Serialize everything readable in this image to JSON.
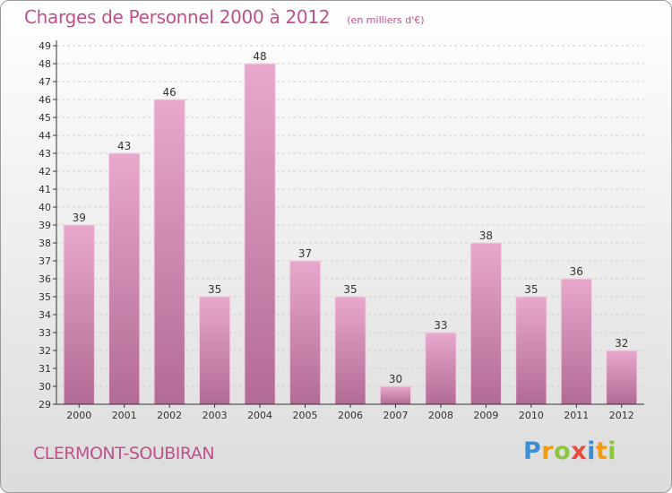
{
  "title": "Charges de Personnel 2000 à 2012",
  "subtitle": "(en milliers d'€)",
  "place": "CLERMONT-SOUBIRAN",
  "logo": {
    "letters": [
      "P",
      "r",
      "o",
      "x",
      "i",
      "t",
      "i"
    ],
    "colors": [
      "#3b8fd6",
      "#f39c12",
      "#8cc63f",
      "#e74c3c",
      "#3b8fd6",
      "#f39c12",
      "#8cc63f"
    ]
  },
  "colors": {
    "bar_top": "#e8a8cc",
    "bar_bottom": "#b26b95",
    "axis": "#333333",
    "grid": "#cfcfcf",
    "text": "#333333"
  },
  "chart_data": {
    "type": "bar",
    "categories": [
      "2000",
      "2001",
      "2002",
      "2003",
      "2004",
      "2005",
      "2006",
      "2007",
      "2008",
      "2009",
      "2010",
      "2011",
      "2012"
    ],
    "values": [
      39,
      43,
      46,
      35,
      48,
      37,
      35,
      30,
      33,
      38,
      35,
      36,
      32
    ],
    "title": "Charges de Personnel 2000 à 2012",
    "subtitle": "(en milliers d'€)",
    "xlabel": "",
    "ylabel": "",
    "ylim": [
      29,
      49
    ],
    "yticks": [
      "29",
      "30",
      "31",
      "32",
      "33",
      "34",
      "35",
      "36",
      "37",
      "38",
      "39",
      "40",
      "41",
      "42",
      "43",
      "44",
      "45",
      "46",
      "47",
      "48",
      "49"
    ],
    "grid": true,
    "legend": "none"
  }
}
